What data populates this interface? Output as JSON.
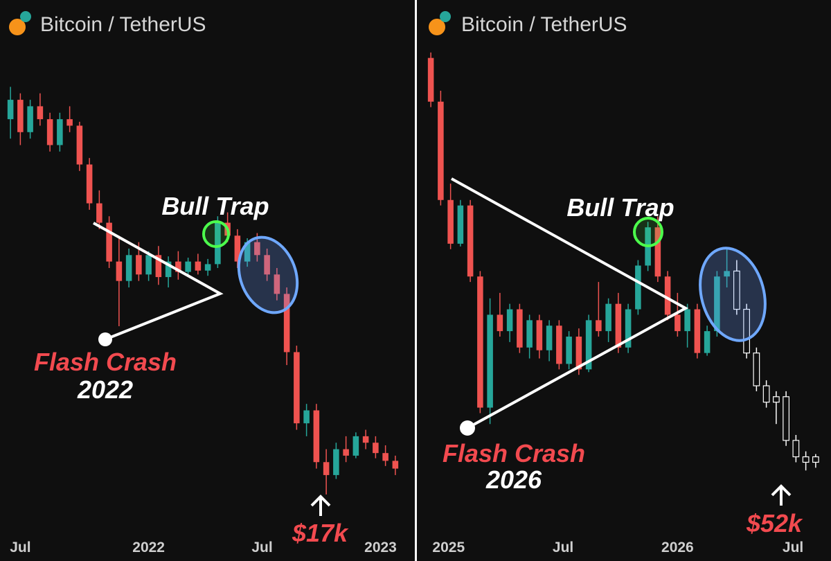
{
  "chart_data": [
    {
      "type": "candlestick",
      "title": "Bitcoin / TetherUS",
      "x": [
        0,
        1,
        2,
        3,
        4,
        5,
        6,
        7,
        8,
        9,
        10,
        11,
        12,
        13,
        14,
        15,
        16,
        17,
        18,
        19,
        20,
        21,
        22,
        23,
        24,
        25,
        26,
        27,
        28,
        29,
        30,
        31,
        32,
        33,
        34,
        35,
        36,
        37,
        38,
        39
      ],
      "open": [
        46000,
        47500,
        45000,
        47000,
        46000,
        44000,
        46000,
        45500,
        42500,
        39500,
        38000,
        35000,
        33500,
        35500,
        34000,
        35500,
        33800,
        35000,
        34200,
        35000,
        34300,
        34800,
        38000,
        37000,
        35000,
        36500,
        35500,
        34000,
        32500,
        28000,
        22500,
        23500,
        19500,
        18500,
        20500,
        20000,
        21500,
        21000,
        20200,
        19600
      ],
      "high": [
        48500,
        48000,
        47500,
        48000,
        46500,
        46500,
        47000,
        45800,
        43000,
        40500,
        38500,
        37000,
        36000,
        36500,
        35800,
        36200,
        35400,
        35800,
        35300,
        35600,
        35200,
        38500,
        38800,
        37500,
        36800,
        37200,
        36000,
        34500,
        33000,
        28500,
        24000,
        24000,
        20500,
        21000,
        21500,
        21800,
        22000,
        21500,
        20800,
        20000
      ],
      "low": [
        44500,
        44000,
        44500,
        45500,
        43500,
        43500,
        45000,
        42000,
        39000,
        37500,
        34500,
        30000,
        33000,
        33500,
        33500,
        33200,
        33000,
        33600,
        33800,
        34000,
        33900,
        34500,
        36500,
        34500,
        34600,
        35000,
        33500,
        32000,
        27000,
        22000,
        21500,
        19000,
        17000,
        18200,
        19500,
        19800,
        20500,
        19800,
        19200,
        18500
      ],
      "close": [
        47500,
        45000,
        47000,
        46000,
        44000,
        46000,
        45500,
        42500,
        39500,
        38000,
        35000,
        33500,
        35500,
        34000,
        35500,
        33800,
        35000,
        34200,
        35000,
        34300,
        34800,
        38000,
        37000,
        35000,
        36500,
        35500,
        34000,
        32500,
        28000,
        22500,
        23500,
        19500,
        18500,
        20500,
        20000,
        21500,
        21000,
        20200,
        19600,
        19000
      ],
      "xlim": [
        -0.5,
        39.5
      ],
      "ylim": [
        14000,
        52000
      ],
      "xticks": [
        {
          "value": 1,
          "label": "Jul"
        },
        {
          "value": 14,
          "label": "2022"
        },
        {
          "value": 25.5,
          "label": "Jul"
        },
        {
          "value": 37.5,
          "label": "2023"
        }
      ],
      "up_color": "#26a69a",
      "down_color": "#ef5350",
      "annotations": {
        "pattern": "Bull Trap",
        "event": "Flash Crash",
        "year": "2022",
        "target": "$17k"
      }
    },
    {
      "type": "candlestick",
      "title": "Bitcoin / TetherUS",
      "x": [
        0,
        1,
        2,
        3,
        4,
        5,
        6,
        7,
        8,
        9,
        10,
        11,
        12,
        13,
        14,
        15,
        16,
        17,
        18,
        19,
        20,
        21,
        22,
        23,
        24,
        25,
        26,
        27,
        28,
        29,
        30,
        31,
        32,
        33,
        34,
        35,
        36,
        37,
        38,
        39
      ],
      "open": [
        127000,
        119000,
        101000,
        93000,
        100000,
        87000,
        63000,
        80000,
        77000,
        81000,
        74000,
        79000,
        73500,
        78000,
        71000,
        76000,
        70000,
        79000,
        77000,
        82000,
        74000,
        81000,
        89000,
        96000,
        87000,
        80000,
        77000,
        81000,
        73000,
        77000,
        87000,
        88000,
        81000,
        73000,
        67000,
        64000,
        65000,
        57000,
        54000,
        53000
      ],
      "high": [
        128000,
        121000,
        104000,
        101000,
        101000,
        88000,
        83000,
        84000,
        82000,
        82000,
        80000,
        80000,
        79000,
        79000,
        77000,
        77500,
        80000,
        86000,
        83000,
        84000,
        82000,
        90000,
        97000,
        98000,
        88000,
        84000,
        82000,
        82000,
        78000,
        88000,
        92000,
        90000,
        82000,
        74000,
        68000,
        66000,
        66000,
        58000,
        55000,
        54500
      ],
      "low": [
        118000,
        100000,
        92000,
        92500,
        86000,
        62000,
        60000,
        76000,
        75000,
        73000,
        72000,
        72000,
        71500,
        70000,
        70000,
        69000,
        69500,
        76000,
        75000,
        73000,
        73000,
        80000,
        88000,
        86000,
        79000,
        76000,
        74000,
        72000,
        72500,
        76000,
        85000,
        80000,
        72000,
        66000,
        63000,
        60000,
        56000,
        53000,
        51500,
        52000
      ],
      "close": [
        119000,
        101000,
        93000,
        100000,
        87000,
        63000,
        80000,
        77000,
        81000,
        74000,
        79000,
        73500,
        78000,
        71000,
        76000,
        70000,
        79000,
        77000,
        82000,
        74000,
        81000,
        89000,
        96000,
        87000,
        80000,
        77000,
        81000,
        73000,
        77000,
        87000,
        88000,
        81000,
        73000,
        67000,
        64000,
        65000,
        57000,
        54000,
        53000,
        54000
      ],
      "xlim": [
        -0.5,
        39.5
      ],
      "ylim": [
        40000,
        130000
      ],
      "xticks": [
        {
          "value": 1.8,
          "label": "2025"
        },
        {
          "value": 13.4,
          "label": "Jul"
        },
        {
          "value": 25,
          "label": "2026"
        },
        {
          "value": 36.7,
          "label": "Jul"
        }
      ],
      "up_color": "#26a69a",
      "down_color": "#ef5350",
      "projected_color": "#ffffff",
      "projected_from": 31,
      "annotations": {
        "pattern": "Bull Trap",
        "event": "Flash Crash",
        "year": "2026",
        "target": "$52k"
      }
    }
  ]
}
